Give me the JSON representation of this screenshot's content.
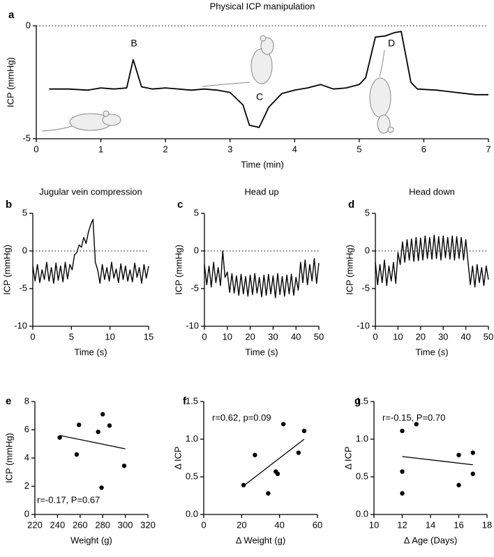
{
  "chart_data": [
    {
      "type": "line",
      "panel": "a",
      "title": "Physical ICP manipulation",
      "x_label": "Time (min)",
      "y_label": "ICP (mmHg)",
      "xlim": [
        0,
        7
      ],
      "xticks": [
        0,
        1,
        2,
        3,
        4,
        5,
        6,
        7
      ],
      "ylim": [
        -5,
        0
      ],
      "yticks": [
        -5,
        0
      ],
      "hline": 0,
      "color": "#000000",
      "annotations": [
        "B",
        "C",
        "D"
      ],
      "x": [
        0.2,
        0.5,
        0.8,
        1.0,
        1.2,
        1.4,
        1.5,
        1.63,
        1.8,
        2.0,
        2.2,
        2.4,
        2.6,
        2.8,
        3.0,
        3.2,
        3.3,
        3.45,
        3.6,
        3.8,
        4.0,
        4.2,
        4.4,
        4.6,
        4.8,
        5.0,
        5.1,
        5.25,
        5.4,
        5.55,
        5.65,
        5.8,
        5.9,
        6.2,
        6.5,
        6.8,
        7.0
      ],
      "values": [
        -2.8,
        -2.8,
        -2.85,
        -2.75,
        -2.8,
        -2.75,
        -1.5,
        -2.7,
        -2.8,
        -2.75,
        -2.8,
        -2.85,
        -2.8,
        -2.85,
        -2.95,
        -3.5,
        -4.4,
        -4.5,
        -3.6,
        -3.0,
        -2.85,
        -2.75,
        -2.6,
        -2.8,
        -2.75,
        -2.6,
        -2.3,
        -0.5,
        -0.45,
        -0.3,
        -0.25,
        -2.5,
        -2.8,
        -2.85,
        -2.95,
        -3.05,
        -3.05
      ]
    },
    {
      "type": "line",
      "panel": "b",
      "title": "Jugular vein compression",
      "x_label": "Time (s)",
      "y_label": "ICP (mmHg)",
      "xlim": [
        0,
        15
      ],
      "xticks": [
        0,
        5,
        10,
        15
      ],
      "ylim": [
        -10,
        5
      ],
      "yticks": [
        -10,
        -5,
        0,
        5
      ],
      "hline": 0,
      "color": "#000000",
      "x": [
        0,
        0.3,
        0.6,
        0.9,
        1.2,
        1.5,
        1.8,
        2.1,
        2.4,
        2.7,
        3,
        3.3,
        3.6,
        3.9,
        4.2,
        4.5,
        4.8,
        5.1,
        5.4,
        5.7,
        6,
        6.3,
        6.6,
        6.9,
        7.2,
        7.5,
        7.8,
        8.1,
        8.4,
        8.7,
        9,
        9.3,
        9.6,
        9.9,
        10.2,
        10.5,
        10.8,
        11.1,
        11.4,
        11.7,
        12,
        12.3,
        12.6,
        12.9,
        13.2,
        13.5,
        13.8,
        14.1,
        14.4,
        14.7,
        15
      ],
      "values": [
        -2,
        -4,
        -1.8,
        -4.2,
        -2.5,
        -3.8,
        -1.5,
        -4,
        -2.2,
        -4.3,
        -1.6,
        -3.9,
        -2,
        -4.1,
        -1.5,
        -3.7,
        -1.8,
        -2.5,
        -0.5,
        -0.2,
        0.8,
        0.5,
        1.8,
        1,
        2.5,
        3.5,
        4.2,
        -1.5,
        -2.5,
        -4.3,
        -1.8,
        -3.8,
        -2.2,
        -4,
        -1.5,
        -3.6,
        -2.4,
        -4.2,
        -1.7,
        -3.8,
        -2,
        -4,
        -2.5,
        -4.1,
        -1.6,
        -3.5,
        -2.2,
        -4.3,
        -1.8,
        -3.6,
        -2
      ]
    },
    {
      "type": "line",
      "panel": "c",
      "title": "Head up",
      "x_label": "Time (s)",
      "y_label": "ICP (mmHg)",
      "xlim": [
        0,
        50
      ],
      "xticks": [
        0,
        10,
        20,
        30,
        40,
        50
      ],
      "ylim": [
        -10,
        5
      ],
      "yticks": [
        -10,
        -5,
        0,
        5
      ],
      "hline": 0,
      "color": "#000000",
      "x": [
        0,
        1,
        2,
        3,
        4,
        5,
        6,
        7,
        8,
        9,
        10,
        11,
        12,
        13,
        14,
        15,
        16,
        17,
        18,
        19,
        20,
        21,
        22,
        23,
        24,
        25,
        26,
        27,
        28,
        29,
        30,
        31,
        32,
        33,
        34,
        35,
        36,
        37,
        38,
        39,
        40,
        41,
        42,
        43,
        44,
        45,
        46,
        47,
        48,
        49,
        50
      ],
      "values": [
        -1.8,
        -4.5,
        -2,
        -4.8,
        -1.5,
        -4.2,
        -2.2,
        -4.6,
        0,
        -3.5,
        -2.8,
        -5.5,
        -3,
        -5.6,
        -3.3,
        -5.9,
        -3.1,
        -5.7,
        -3.4,
        -6,
        -3.2,
        -5.8,
        -3,
        -5.6,
        -3.5,
        -6.1,
        -3.2,
        -5.9,
        -3.1,
        -5.7,
        -3.3,
        -6.2,
        -3,
        -5.8,
        -3.4,
        -6,
        -3.2,
        -5.7,
        -3.1,
        -5.9,
        -3.5,
        -5.2,
        -1.5,
        -4.2,
        -1.2,
        -4.5,
        -1.8,
        -4,
        -1,
        -4.3,
        -1.6
      ]
    },
    {
      "type": "line",
      "panel": "d",
      "title": "Head down",
      "x_label": "Time (s)",
      "y_label": "ICP (mmHg)",
      "xlim": [
        0,
        50
      ],
      "xticks": [
        0,
        10,
        20,
        30,
        40,
        50
      ],
      "ylim": [
        -10,
        5
      ],
      "yticks": [
        -10,
        -5,
        0,
        5
      ],
      "hline": 0,
      "color": "#000000",
      "x": [
        0,
        1,
        2,
        3,
        4,
        5,
        6,
        7,
        8,
        9,
        10,
        11,
        12,
        13,
        14,
        15,
        16,
        17,
        18,
        19,
        20,
        21,
        22,
        23,
        24,
        25,
        26,
        27,
        28,
        29,
        30,
        31,
        32,
        33,
        34,
        35,
        36,
        37,
        38,
        39,
        40,
        41,
        42,
        43,
        44,
        45,
        46,
        47,
        48,
        49,
        50
      ],
      "values": [
        -1.5,
        -4.5,
        -1.8,
        -4.2,
        -1.2,
        -4.6,
        -2,
        -4,
        -1.5,
        -4.3,
        -0.2,
        -1.8,
        1.2,
        -1.5,
        1.5,
        -1.2,
        1.6,
        -1.4,
        1.8,
        -1.3,
        1.7,
        -1.2,
        2,
        -1,
        1.8,
        -1.1,
        2.1,
        -1,
        1.9,
        -1.2,
        2,
        -0.9,
        1.8,
        -1.1,
        2,
        -1.2,
        1.9,
        -1,
        1.8,
        -1.2,
        1.5,
        -1.5,
        -4.5,
        -2,
        -4.8,
        -1.8,
        -4.2,
        -2.2,
        -4.6,
        -2,
        -3.8
      ]
    },
    {
      "type": "scatter",
      "panel": "e",
      "x_label": "Weight (g)",
      "y_label": "ICP (mmHg)",
      "annotation": "r=-0.17, P=0.67",
      "xlim": [
        220,
        320
      ],
      "xticks": [
        220,
        240,
        260,
        280,
        300,
        320
      ],
      "ylim": [
        0,
        8
      ],
      "yticks": [
        0,
        2,
        4,
        6,
        8
      ],
      "color": "#000000",
      "x": [
        242,
        257,
        259,
        276,
        279,
        280,
        286,
        299
      ],
      "values": [
        5.45,
        4.25,
        6.35,
        5.85,
        1.9,
        7.1,
        6.3,
        3.45
      ],
      "fit": {
        "x": [
          242,
          300
        ],
        "values": [
          5.6,
          4.65
        ]
      }
    },
    {
      "type": "scatter",
      "panel": "f",
      "x_label": "Δ Weight (g)",
      "y_label": "Δ ICP",
      "annotation": "r=0.62, p=0.09",
      "xlim": [
        0,
        60
      ],
      "xticks": [
        0,
        20,
        40,
        60
      ],
      "ylim": [
        0,
        1.5
      ],
      "yticks": [
        {
          "value": 0,
          "label": "0.0"
        },
        0.5,
        {
          "value": 1,
          "label": "1.0"
        },
        1.5
      ],
      "color": "#000000",
      "x": [
        21,
        27,
        34,
        38,
        39,
        42,
        50,
        53
      ],
      "values": [
        0.39,
        0.79,
        0.28,
        0.57,
        0.54,
        1.2,
        0.82,
        1.11
      ],
      "fit": {
        "x": [
          21,
          53
        ],
        "values": [
          0.38,
          1.0
        ]
      }
    },
    {
      "type": "scatter",
      "panel": "g",
      "x_label": "Δ Age (Days)",
      "y_label": "Δ ICP",
      "annotation": "r=-0.15, P=0.70",
      "xlim": [
        10,
        18
      ],
      "xticks": [
        10,
        12,
        14,
        16,
        18
      ],
      "ylim": [
        0,
        1.5
      ],
      "yticks": [
        {
          "value": 0,
          "label": "0.0"
        },
        0.5,
        {
          "value": 1,
          "label": "1.0"
        },
        1.5
      ],
      "color": "#000000",
      "x": [
        12,
        12,
        12,
        13,
        16,
        16,
        17,
        17
      ],
      "values": [
        1.11,
        0.57,
        0.28,
        1.2,
        0.79,
        0.39,
        0.82,
        0.54
      ],
      "fit": {
        "x": [
          12,
          17
        ],
        "values": [
          0.77,
          0.66
        ]
      }
    }
  ]
}
